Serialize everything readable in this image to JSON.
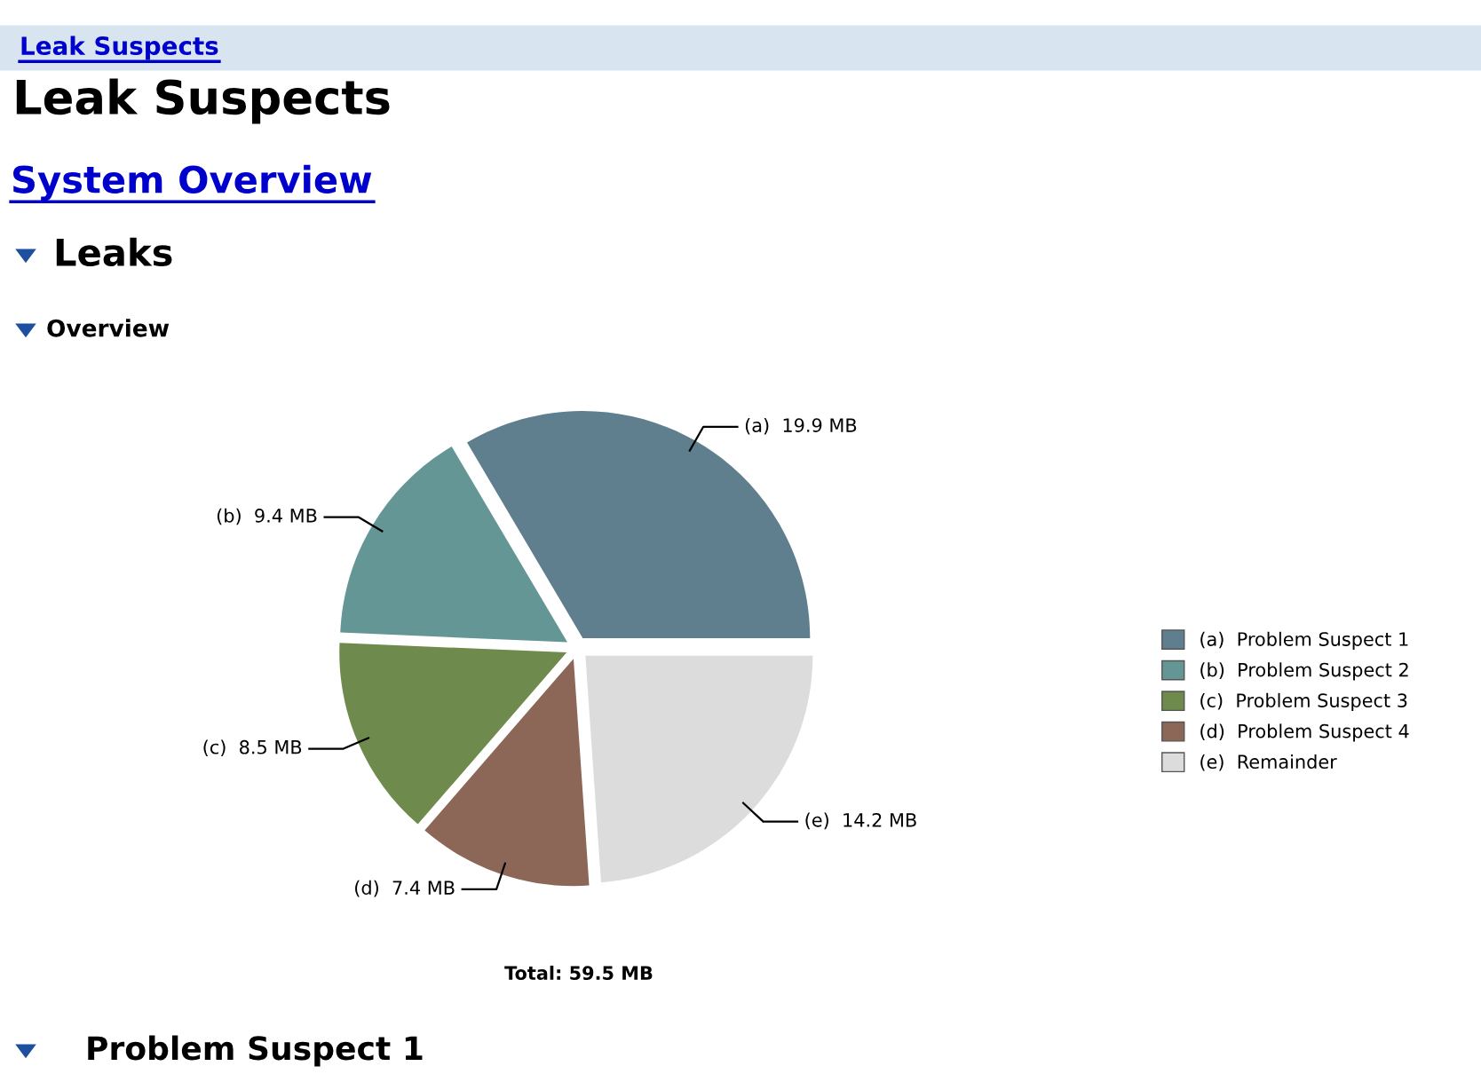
{
  "chart_data": {
    "type": "pie",
    "title": "Leak Suspects",
    "categories": [
      "(a)  Problem Suspect 1",
      "(b)  Problem Suspect 2",
      "(c)  Problem Suspect 3",
      "(d)  Problem Suspect 4",
      "(e)  Remainder"
    ],
    "values": [
      19.9,
      9.4,
      8.5,
      7.4,
      14.2
    ],
    "colors": [
      "#607f8e",
      "#659696",
      "#6e8a4c",
      "#8c6656",
      "#dcdcdc"
    ],
    "value_labels": [
      "(a)  19.9 MB",
      "(b)  9.4 MB",
      "(c)  8.5 MB",
      "(d)  7.4 MB",
      "(e)  14.2 MB"
    ],
    "legend": "right",
    "annotations": [
      "Leak Suspects",
      "System Overview",
      "Leaks",
      "Overview",
      "Total: 59.5 MB",
      "Problem Suspect 1"
    ]
  }
}
